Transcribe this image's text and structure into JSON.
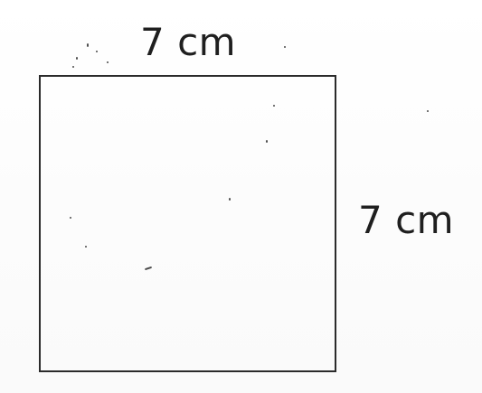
{
  "diagram": {
    "shape": "square",
    "labels": {
      "top": "7 cm",
      "right": "7 cm"
    },
    "colors": {
      "line": "#2b2b2b",
      "text": "#1f1f1f",
      "background": "#ffffff"
    }
  }
}
